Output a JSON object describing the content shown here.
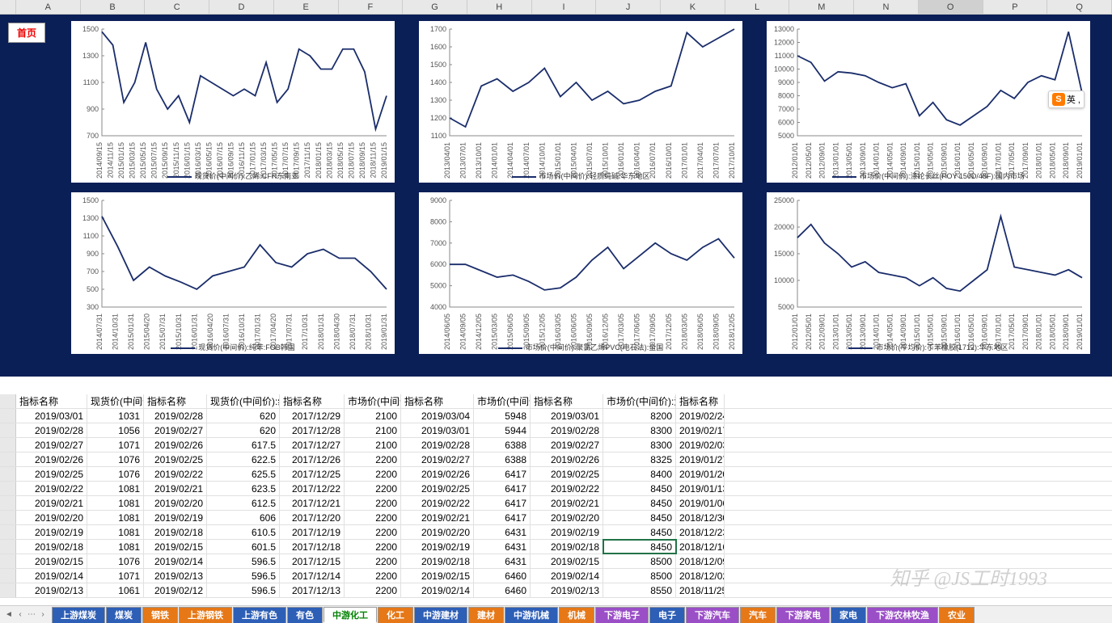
{
  "columns": [
    "A",
    "B",
    "C",
    "D",
    "E",
    "F",
    "G",
    "H",
    "I",
    "J",
    "K",
    "L",
    "M",
    "N",
    "O",
    "P",
    "Q"
  ],
  "selected_col": "O",
  "home_btn": "首页",
  "charts": [
    {
      "legend": "现货价(中间价):乙烯:CFR东南亚",
      "ymin": 700,
      "ymax": 1500,
      "ystep": 200,
      "xlabels": [
        "2014/09/15",
        "2014/11/15",
        "2015/01/15",
        "2015/03/15",
        "2015/05/15",
        "2015/07/15",
        "2015/09/15",
        "2015/11/15",
        "2016/01/15",
        "2016/03/15",
        "2016/05/15",
        "2016/07/15",
        "2016/09/15",
        "2016/11/15",
        "2017/01/15",
        "2017/03/15",
        "2017/05/15",
        "2017/07/15",
        "2017/09/15",
        "2017/11/15",
        "2018/01/15",
        "2018/03/15",
        "2018/05/15",
        "2018/07/15",
        "2018/09/15",
        "2018/11/15",
        "2019/01/15"
      ],
      "series": [
        1480,
        1380,
        950,
        1100,
        1400,
        1050,
        900,
        1000,
        800,
        1150,
        1100,
        1050,
        1000,
        1050,
        1000,
        1250,
        950,
        1050,
        1350,
        1300,
        1200,
        1200,
        1350,
        1350,
        1180,
        750,
        1000
      ],
      "color": "#1a2d6b"
    },
    {
      "legend": "市场价(中间价):轻质纯碱:华东地区",
      "ymin": 1100,
      "ymax": 1700,
      "ystep": 100,
      "xlabels": [
        "2013/04/01",
        "2013/07/01",
        "2013/10/01",
        "2014/01/01",
        "2014/04/01",
        "2014/07/01",
        "2014/10/01",
        "2015/01/01",
        "2015/04/01",
        "2015/07/01",
        "2015/10/01",
        "2016/01/01",
        "2016/04/01",
        "2016/07/01",
        "2016/10/01",
        "2017/01/01",
        "2017/04/01",
        "2017/07/01",
        "2017/10/01"
      ],
      "series": [
        1200,
        1150,
        1380,
        1420,
        1350,
        1400,
        1480,
        1320,
        1400,
        1300,
        1350,
        1280,
        1300,
        1350,
        1380,
        1680,
        1600,
        1650,
        1700
      ],
      "color": "#1a2d6b"
    },
    {
      "legend": "市场价(中间价):涤纶长丝(POY 150D/48F):国内市场",
      "ymin": 5000,
      "ymax": 13000,
      "ystep": 1000,
      "xlabels": [
        "2012/01/01",
        "2012/05/01",
        "2012/09/01",
        "2013/01/01",
        "2013/05/01",
        "2013/09/01",
        "2014/01/01",
        "2014/05/01",
        "2014/09/01",
        "2015/01/01",
        "2015/05/01",
        "2015/09/01",
        "2016/01/01",
        "2016/05/01",
        "2016/09/01",
        "2017/01/01",
        "2017/05/01",
        "2017/09/01",
        "2018/01/01",
        "2018/05/01",
        "2018/09/01",
        "2019/01/01"
      ],
      "series": [
        11000,
        10500,
        9100,
        9800,
        9700,
        9500,
        9000,
        8600,
        8900,
        6500,
        7500,
        6200,
        5800,
        6500,
        7200,
        8400,
        7800,
        9000,
        9500,
        9200,
        12800,
        8200
      ],
      "color": "#1a2d6b"
    },
    {
      "legend": "现货价(中间价):纯苯:FOB韩国",
      "ymin": 300,
      "ymax": 1500,
      "ystep": 200,
      "xlabels": [
        "2014/07/31",
        "2014/10/31",
        "2015/01/31",
        "2015/04/20",
        "2015/07/31",
        "2015/10/31",
        "2016/01/31",
        "2016/04/20",
        "2016/07/31",
        "2016/10/31",
        "2017/01/31",
        "2017/04/20",
        "2017/07/31",
        "2017/10/31",
        "2018/01/31",
        "2018/04/30",
        "2018/07/31",
        "2018/10/31",
        "2019/01/31"
      ],
      "series": [
        1320,
        980,
        600,
        750,
        650,
        580,
        500,
        650,
        700,
        750,
        1000,
        800,
        750,
        900,
        950,
        850,
        850,
        700,
        500
      ],
      "color": "#1a2d6b"
    },
    {
      "legend": "市场价(中间价):聚氯乙烯PVC(电石法):全国",
      "ymin": 4000,
      "ymax": 9000,
      "ystep": 1000,
      "xlabels": [
        "2014/06/05",
        "2014/09/05",
        "2014/12/05",
        "2015/03/05",
        "2015/06/05",
        "2015/09/05",
        "2015/12/05",
        "2016/03/05",
        "2016/06/05",
        "2016/09/05",
        "2016/12/05",
        "2017/03/05",
        "2017/06/05",
        "2017/09/05",
        "2017/12/05",
        "2018/03/05",
        "2018/06/05",
        "2018/09/05",
        "2018/12/05"
      ],
      "series": [
        6000,
        6000,
        5700,
        5400,
        5500,
        5200,
        4800,
        4900,
        5400,
        6200,
        6800,
        5800,
        6400,
        7000,
        6500,
        6200,
        6800,
        7200,
        6300
      ],
      "color": "#1a2d6b"
    },
    {
      "legend": "市场价(平均价):丁苯橡胶(1712):华东地区",
      "ymin": 5000,
      "ymax": 25000,
      "ystep": 5000,
      "xlabels": [
        "2012/01/01",
        "2012/05/01",
        "2012/09/01",
        "2013/01/01",
        "2013/05/01",
        "2013/09/01",
        "2014/01/01",
        "2014/05/01",
        "2014/09/01",
        "2015/01/01",
        "2015/05/01",
        "2015/09/01",
        "2016/01/01",
        "2016/05/01",
        "2016/09/01",
        "2017/01/01",
        "2017/05/01",
        "2017/09/01",
        "2018/01/01",
        "2018/05/01",
        "2018/09/01",
        "2019/01/01"
      ],
      "series": [
        18000,
        20500,
        17000,
        15000,
        12500,
        13500,
        11500,
        11000,
        10500,
        9000,
        10500,
        8500,
        8000,
        10000,
        12000,
        22000,
        12500,
        12000,
        11500,
        11000,
        12000,
        10500
      ],
      "color": "#1a2d6b"
    }
  ],
  "grid_headers": [
    "指标名称",
    "现货价(中间价):乙",
    "指标名称",
    "现货价(中间价):纯苯",
    "指标名称",
    "市场价(中间价):轻质",
    "指标名称",
    "市场价(中间价):聚氯",
    "指标名称",
    "市场价(中间价):涤纶",
    "指标名称"
  ],
  "grid_rows": [
    [
      "2019/03/01",
      "1031",
      "2019/02/28",
      "620",
      "2017/12/29",
      "2100",
      "2019/03/04",
      "5948",
      "2019/03/01",
      "8200",
      "2019/02/24"
    ],
    [
      "2019/02/28",
      "1056",
      "2019/02/27",
      "620",
      "2017/12/28",
      "2100",
      "2019/03/01",
      "5944",
      "2019/02/28",
      "8300",
      "2019/02/17"
    ],
    [
      "2019/02/27",
      "1071",
      "2019/02/26",
      "617.5",
      "2017/12/27",
      "2100",
      "2019/02/28",
      "6388",
      "2019/02/27",
      "8300",
      "2019/02/03"
    ],
    [
      "2019/02/26",
      "1076",
      "2019/02/25",
      "622.5",
      "2017/12/26",
      "2200",
      "2019/02/27",
      "6388",
      "2019/02/26",
      "8325",
      "2019/01/27"
    ],
    [
      "2019/02/25",
      "1076",
      "2019/02/22",
      "625.5",
      "2017/12/25",
      "2200",
      "2019/02/26",
      "6417",
      "2019/02/25",
      "8400",
      "2019/01/20"
    ],
    [
      "2019/02/22",
      "1081",
      "2019/02/21",
      "623.5",
      "2017/12/22",
      "2200",
      "2019/02/25",
      "6417",
      "2019/02/22",
      "8450",
      "2019/01/13"
    ],
    [
      "2019/02/21",
      "1081",
      "2019/02/20",
      "612.5",
      "2017/12/21",
      "2200",
      "2019/02/22",
      "6417",
      "2019/02/21",
      "8450",
      "2019/01/06"
    ],
    [
      "2019/02/20",
      "1081",
      "2019/02/19",
      "606",
      "2017/12/20",
      "2200",
      "2019/02/21",
      "6417",
      "2019/02/20",
      "8450",
      "2018/12/30"
    ],
    [
      "2019/02/19",
      "1081",
      "2019/02/18",
      "610.5",
      "2017/12/19",
      "2200",
      "2019/02/20",
      "6431",
      "2019/02/19",
      "8450",
      "2018/12/23"
    ],
    [
      "2019/02/18",
      "1081",
      "2019/02/15",
      "601.5",
      "2017/12/18",
      "2200",
      "2019/02/19",
      "6431",
      "2019/02/18",
      "8450",
      "2018/12/16"
    ],
    [
      "2019/02/15",
      "1076",
      "2019/02/14",
      "596.5",
      "2017/12/15",
      "2200",
      "2019/02/18",
      "6431",
      "2019/02/15",
      "8500",
      "2018/12/09"
    ],
    [
      "2019/02/14",
      "1071",
      "2019/02/13",
      "596.5",
      "2017/12/14",
      "2200",
      "2019/02/15",
      "6460",
      "2019/02/14",
      "8500",
      "2018/12/02"
    ],
    [
      "2019/02/13",
      "1061",
      "2019/02/12",
      "596.5",
      "2017/12/13",
      "2200",
      "2019/02/14",
      "6460",
      "2019/02/13",
      "8550",
      "2018/11/25"
    ]
  ],
  "tabs": [
    {
      "label": "上游煤炭",
      "color": "#2e5fb7"
    },
    {
      "label": "煤炭",
      "color": "#2e5fb7"
    },
    {
      "label": "钢铁",
      "color": "#e67817"
    },
    {
      "label": "上游钢铁",
      "color": "#e67817"
    },
    {
      "label": "上游有色",
      "color": "#2e5fb7"
    },
    {
      "label": "有色",
      "color": "#2e5fb7"
    },
    {
      "label": "中游化工",
      "color": "#ffffff",
      "active": true
    },
    {
      "label": "化工",
      "color": "#e67817"
    },
    {
      "label": "中游建材",
      "color": "#2e5fb7"
    },
    {
      "label": "建材",
      "color": "#e67817"
    },
    {
      "label": "中游机械",
      "color": "#2e5fb7"
    },
    {
      "label": "机械",
      "color": "#e67817"
    },
    {
      "label": "下游电子",
      "color": "#9b4fc7"
    },
    {
      "label": "电子",
      "color": "#2e5fb7"
    },
    {
      "label": "下游汽车",
      "color": "#9b4fc7"
    },
    {
      "label": "汽车",
      "color": "#e67817"
    },
    {
      "label": "下游家电",
      "color": "#9b4fc7"
    },
    {
      "label": "家电",
      "color": "#2e5fb7"
    },
    {
      "label": "下游农林牧渔",
      "color": "#9b4fc7"
    },
    {
      "label": "农业",
      "color": "#e67817"
    }
  ],
  "watermark": "知乎 @JS工时1993",
  "ime": {
    "logo": "S",
    "text": "英 ,"
  },
  "selected_cell": {
    "row": 9,
    "col": 9
  }
}
